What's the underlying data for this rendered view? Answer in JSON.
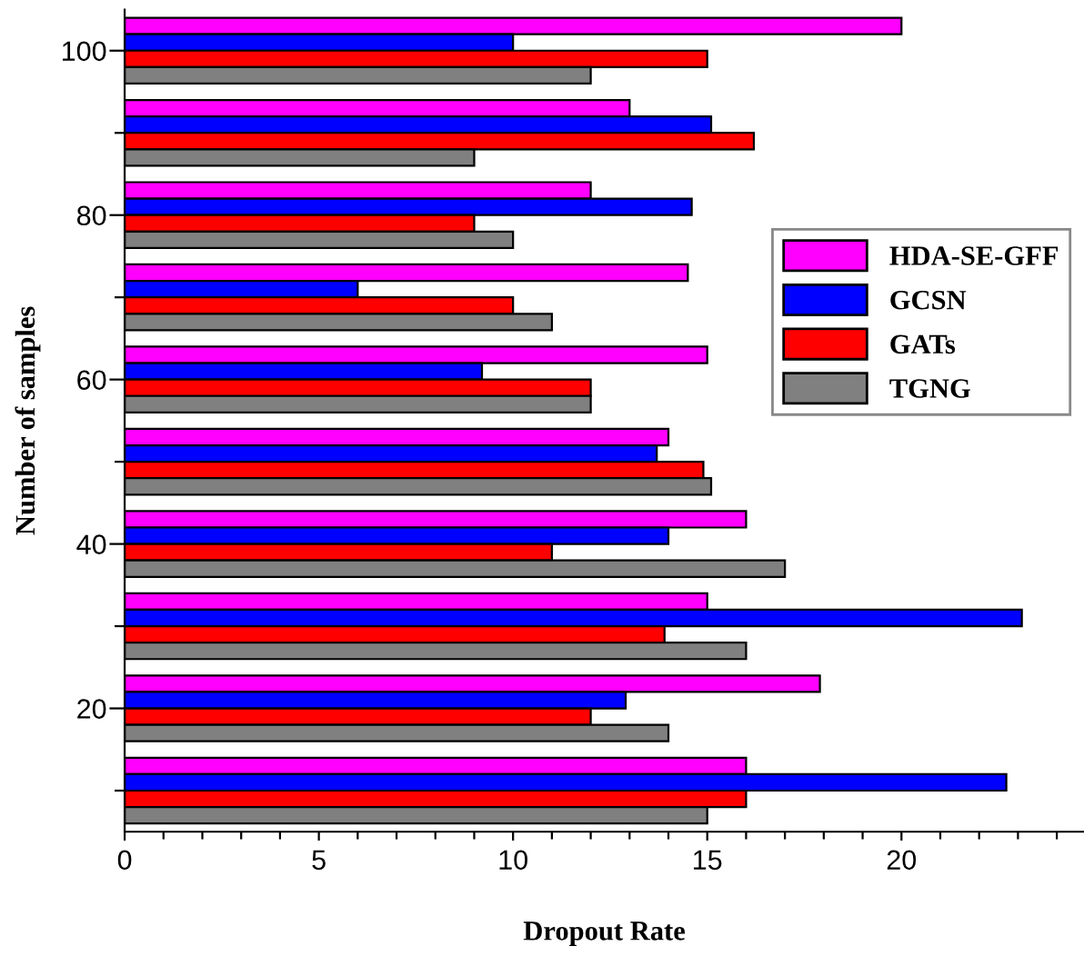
{
  "chart_data": {
    "type": "bar",
    "orientation": "horizontal",
    "xlabel": "Dropout Rate",
    "ylabel": "Number of samples",
    "categories": [
      "100",
      null,
      "80",
      null,
      "60",
      null,
      "40",
      null,
      "20",
      null
    ],
    "series": [
      {
        "name": "HDA-SE-GFF",
        "color": "#ff00ff",
        "values": [
          20,
          13,
          12,
          14.5,
          15,
          14,
          16,
          15,
          17.9,
          16
        ]
      },
      {
        "name": "GCSN",
        "color": "#0000ff",
        "values": [
          10,
          15.1,
          14.6,
          6,
          9.2,
          13.7,
          14,
          23.1,
          12.9,
          22.7
        ]
      },
      {
        "name": "GATs",
        "color": "#ff0000",
        "values": [
          15,
          16.2,
          9,
          10,
          12,
          14.9,
          11,
          13.9,
          12,
          16
        ]
      },
      {
        "name": "TGNG",
        "color": "#808080",
        "values": [
          12,
          9,
          10,
          11,
          12,
          15.1,
          17,
          16,
          14,
          15
        ]
      }
    ],
    "xlim": [
      0,
      24.7
    ],
    "xticks": [
      0,
      {
        "value": 1,
        "label": null
      },
      {
        "value": 2,
        "label": null
      },
      {
        "value": 3,
        "label": null
      },
      {
        "value": 4,
        "label": null
      },
      5,
      {
        "value": 6,
        "label": null
      },
      {
        "value": 7,
        "label": null
      },
      {
        "value": 8,
        "label": null
      },
      {
        "value": 9,
        "label": null
      },
      10,
      {
        "value": 11,
        "label": null
      },
      {
        "value": 12,
        "label": null
      },
      {
        "value": 13,
        "label": null
      },
      {
        "value": 14,
        "label": null
      },
      15,
      {
        "value": 16,
        "label": null
      },
      {
        "value": 17,
        "label": null
      },
      {
        "value": 18,
        "label": null
      },
      {
        "value": 19,
        "label": null
      },
      20,
      {
        "value": 21,
        "label": null
      },
      {
        "value": 22,
        "label": null
      },
      {
        "value": 23,
        "label": null
      },
      {
        "value": 24,
        "label": null
      }
    ],
    "grid": false,
    "legend": "right"
  }
}
